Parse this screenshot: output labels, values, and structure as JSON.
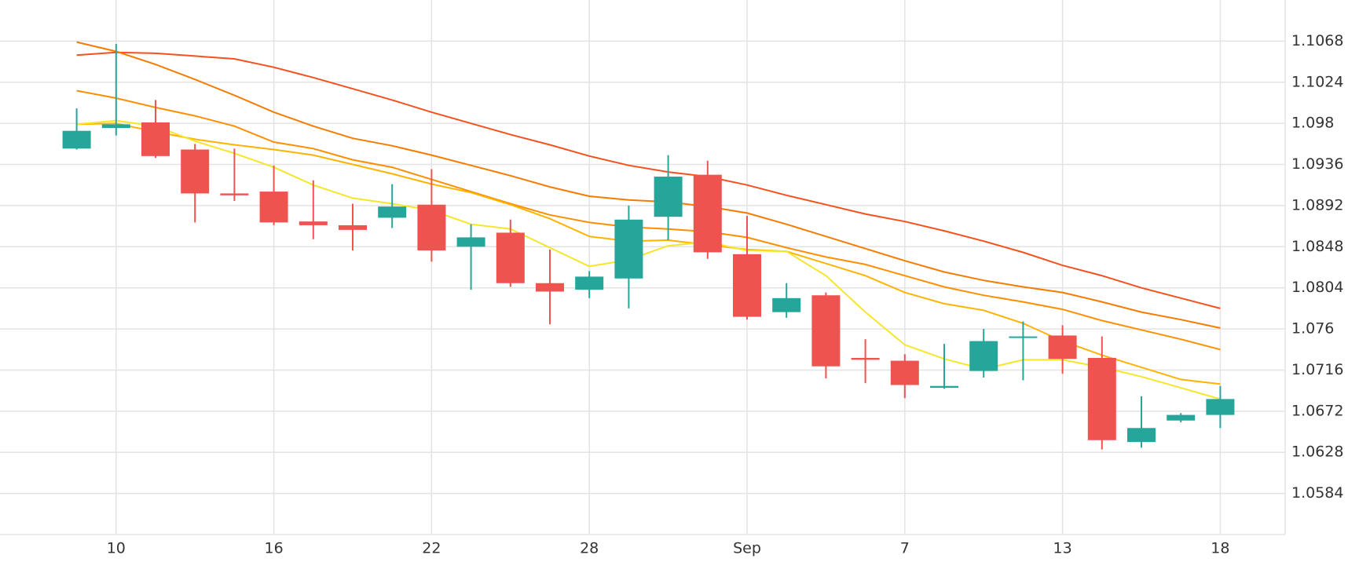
{
  "chart_data": {
    "type": "candlestick",
    "categories": [
      null,
      "10",
      null,
      null,
      null,
      "16",
      null,
      null,
      null,
      "22",
      null,
      null,
      null,
      "28",
      null,
      null,
      null,
      "Sep",
      null,
      null,
      null,
      "7",
      null,
      null,
      null,
      "13",
      null,
      null,
      null,
      "18"
    ],
    "open": [
      1.0953,
      1.0975,
      1.0981,
      1.0952,
      1.0905,
      1.0907,
      1.0875,
      1.0871,
      1.0879,
      1.0893,
      1.0848,
      1.0863,
      1.0809,
      1.0802,
      1.0814,
      1.088,
      1.0925,
      1.084,
      1.0778,
      1.0796,
      1.0729,
      1.0726,
      1.0697,
      1.0715,
      1.0751,
      1.0753,
      1.0729,
      1.0639,
      1.0662,
      1.0668
    ],
    "high": [
      1.0996,
      1.1065,
      1.1005,
      1.0958,
      1.0953,
      1.0935,
      1.0919,
      1.0894,
      1.0915,
      1.0931,
      1.0872,
      1.0877,
      1.0845,
      1.0822,
      1.0892,
      1.0946,
      1.094,
      1.0881,
      1.0809,
      1.0799,
      1.0749,
      1.0733,
      1.0744,
      1.076,
      1.0768,
      1.0764,
      1.0752,
      1.0688,
      1.067,
      1.0699
    ],
    "low": [
      1.0952,
      1.0967,
      1.0943,
      1.0874,
      1.0897,
      1.0871,
      1.0856,
      1.0844,
      1.0868,
      1.0832,
      1.0802,
      1.0805,
      1.0765,
      1.0793,
      1.0782,
      1.0855,
      1.0835,
      1.077,
      1.0772,
      1.0707,
      1.0702,
      1.0686,
      1.0696,
      1.0708,
      1.0705,
      1.0712,
      1.0631,
      1.0633,
      1.066,
      1.0654
    ],
    "close": [
      1.0972,
      1.0979,
      1.0945,
      1.0905,
      1.0903,
      1.0874,
      1.0871,
      1.0866,
      1.0891,
      1.0844,
      1.0858,
      1.0809,
      1.08,
      1.0816,
      1.0877,
      1.0923,
      1.0842,
      1.0773,
      1.0793,
      1.072,
      1.0727,
      1.07,
      1.0699,
      1.0747,
      1.0752,
      1.0728,
      1.0641,
      1.0654,
      1.0668,
      1.0685
    ],
    "up_color": "#26a69a",
    "down_color": "#ef5350",
    "lines": [
      {
        "color": "#f4511e",
        "values": [
          1.1053,
          1.1056,
          1.1055,
          1.1052,
          1.1049,
          1.104,
          1.1029,
          1.1017,
          1.1005,
          1.0992,
          1.098,
          1.0968,
          1.0957,
          1.0945,
          1.0935,
          1.0928,
          1.0923,
          1.0914,
          1.0903,
          1.0893,
          1.0883,
          1.0875,
          1.0865,
          1.0854,
          1.0842,
          1.0828,
          1.0817,
          1.0804,
          1.0793,
          1.0782
        ]
      },
      {
        "color": "#f57c00",
        "values": [
          1.1067,
          1.1057,
          1.1043,
          1.1027,
          1.101,
          1.0992,
          1.0977,
          1.0964,
          1.0956,
          1.0946,
          1.0935,
          1.0924,
          1.0912,
          1.0902,
          1.0898,
          1.0896,
          1.0891,
          1.0884,
          1.0872,
          1.0859,
          1.0846,
          1.0833,
          1.0821,
          1.0812,
          1.0805,
          1.0799,
          1.0789,
          1.0778,
          1.077,
          1.0761
        ]
      },
      {
        "color": "#ff8f00",
        "values": [
          1.1015,
          1.1007,
          1.0997,
          1.0988,
          1.0977,
          1.096,
          1.0953,
          1.0941,
          1.0933,
          1.092,
          1.0907,
          1.0894,
          1.0882,
          1.0874,
          1.0869,
          1.0867,
          1.0864,
          1.0858,
          1.0847,
          1.0837,
          1.0829,
          1.0817,
          1.0805,
          1.0796,
          1.0789,
          1.0781,
          1.0769,
          1.0759,
          1.0749,
          1.0738
        ]
      },
      {
        "color": "#ffb300",
        "values": [
          1.0979,
          1.098,
          1.0971,
          1.0963,
          1.0957,
          1.0952,
          1.0946,
          1.0936,
          1.0926,
          1.0915,
          1.0906,
          1.0893,
          1.0878,
          1.0859,
          1.0854,
          1.0855,
          1.085,
          1.0845,
          1.0843,
          1.083,
          1.0817,
          1.0799,
          1.0787,
          1.078,
          1.0766,
          1.0747,
          1.0732,
          1.0719,
          1.0706,
          1.0701
        ]
      },
      {
        "color": "#f5e62a",
        "values": [
          1.0979,
          1.0983,
          1.0977,
          1.0961,
          1.0948,
          1.0933,
          1.0914,
          1.09,
          1.0894,
          1.0887,
          1.0872,
          1.0867,
          1.0847,
          1.0827,
          1.0834,
          1.0849,
          1.0853,
          1.0844,
          1.0843,
          1.0817,
          1.0778,
          1.0743,
          1.0728,
          1.0717,
          1.0727,
          1.0727,
          1.0719,
          1.0709,
          1.0697,
          1.0685
        ]
      }
    ],
    "ylim": [
      1.054,
      1.1112
    ],
    "yticks": [
      1.0584,
      1.0628,
      1.0672,
      1.0716,
      1.076,
      1.0804,
      1.0848,
      1.0892,
      1.0936,
      1.098,
      1.1024,
      1.1068
    ],
    "grid": true
  }
}
